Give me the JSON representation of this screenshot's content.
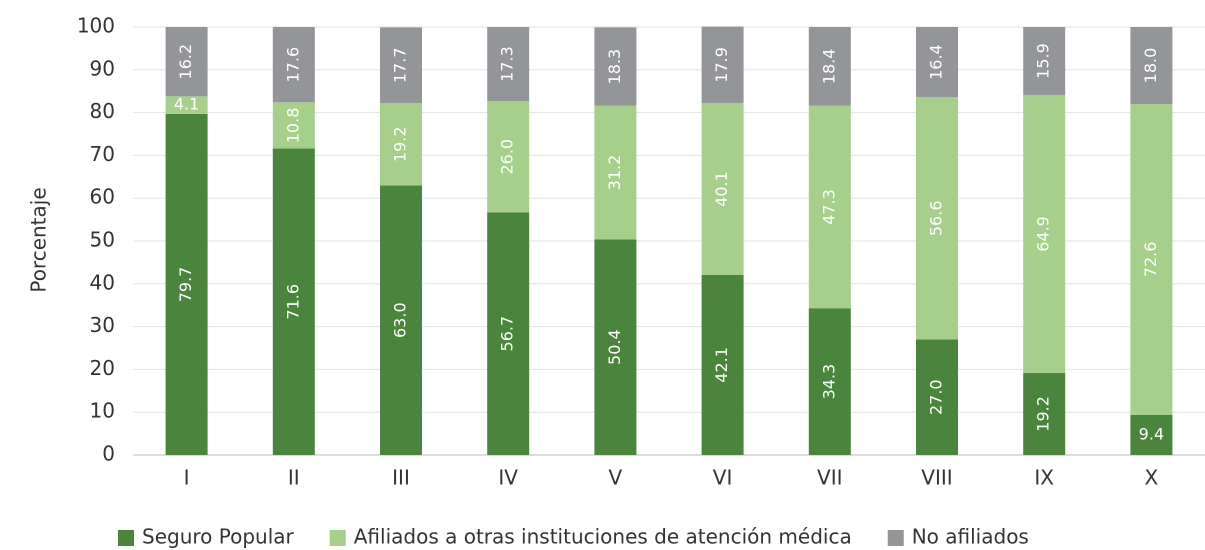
{
  "chart_data": {
    "type": "stacked_bar",
    "y_label": "Porcentaje",
    "categories": [
      "I",
      "II",
      "III",
      "IV",
      "V",
      "VI",
      "VII",
      "VIII",
      "IX",
      "X"
    ],
    "series": [
      {
        "name": "Seguro Popular",
        "color": "#4b843c",
        "values": [
          79.7,
          71.6,
          63.0,
          56.7,
          50.4,
          42.1,
          34.3,
          27.0,
          19.2,
          9.4
        ],
        "value_labels": [
          "79.7",
          "71.6",
          "63.0",
          "56.7",
          "50.4",
          "42.1",
          "34.3",
          "27.0",
          "19.2",
          "9.4"
        ]
      },
      {
        "name": "Afiliados a otras instituciones de atención médica",
        "color": "#a7cf8c",
        "values": [
          4.1,
          10.8,
          19.2,
          26.0,
          31.2,
          40.1,
          47.3,
          56.6,
          64.9,
          72.6
        ],
        "value_labels": [
          "4.1",
          "10.8",
          "19.2",
          "26.0",
          "31.2",
          "40.1",
          "47.3",
          "56.6",
          "64.9",
          "72.6"
        ]
      },
      {
        "name": "No afiliados",
        "color": "#939598",
        "values": [
          16.2,
          17.6,
          17.7,
          17.3,
          18.3,
          17.9,
          18.4,
          16.4,
          15.9,
          18.0
        ],
        "value_labels": [
          "16.2",
          "17.6",
          "17.7",
          "17.3",
          "18.3",
          "17.9",
          "18.4",
          "16.4",
          "15.9",
          "18.0"
        ]
      }
    ],
    "ylim": [
      0,
      100
    ],
    "yticks": [
      0,
      10,
      20,
      30,
      40,
      50,
      60,
      70,
      80,
      90,
      100
    ],
    "grid": true
  }
}
